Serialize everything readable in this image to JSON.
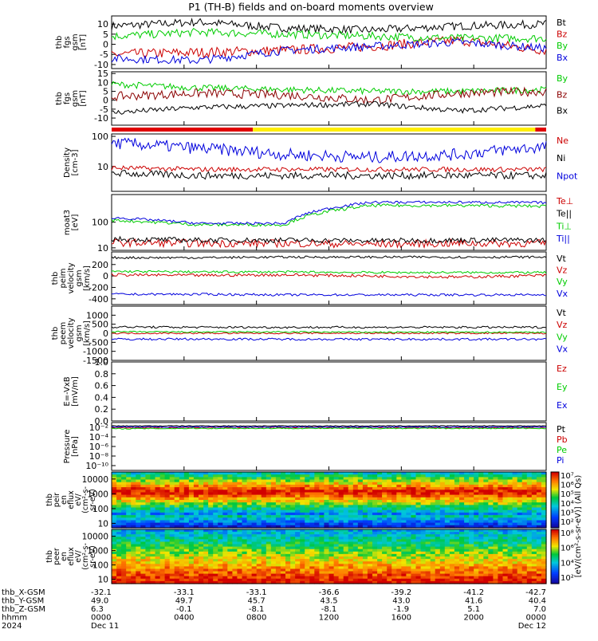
{
  "title": "P1 (TH-B) fields and on-board moments overview",
  "chart_data": {
    "type": "line",
    "x_ticks_hhmm": [
      "0000",
      "0400",
      "0800",
      "1200",
      "1600",
      "2000",
      "0000"
    ],
    "x_ticks_date": [
      "Dec 11",
      "",
      "",
      "",
      "",
      "",
      "Dec 12"
    ],
    "year": "2024",
    "ephemeris": {
      "rows": [
        {
          "label": "thb_X-GSM",
          "values": [
            "-32.1",
            "-33.1",
            "-33.1",
            "-36.6",
            "-39.2",
            "-41.2",
            "-42.7"
          ]
        },
        {
          "label": "thb_Y-GSM",
          "values": [
            "49.0",
            "49.7",
            "45.7",
            "43.5",
            "43.0",
            "41.6",
            "40.4"
          ]
        },
        {
          "label": "thb_Z-GSM",
          "values": [
            "6.3",
            "-0.1",
            "-8.1",
            "-8.1",
            "-1.9",
            "5.1",
            "7.0"
          ]
        },
        {
          "label": "hhmm",
          "values": [
            "0000",
            "0400",
            "0800",
            "1200",
            "1600",
            "2000",
            "0000"
          ]
        },
        {
          "label": "2024",
          "values": [
            "Dec 11",
            "",
            "",
            "",
            "",
            "",
            "Dec 12"
          ]
        }
      ]
    },
    "panels": [
      {
        "ylabel": [
          "thb",
          "fgs",
          "gsm",
          "[nT]"
        ],
        "ylim": [
          -12,
          14
        ],
        "yticks": [
          "-10",
          "-5",
          "0",
          "5",
          "10"
        ],
        "ytick_values": [
          -10,
          -5,
          0,
          5,
          10
        ],
        "log": false,
        "series": [
          {
            "name": "Bt",
            "color": "#000000",
            "level": [
              9,
              11,
              8,
              7,
              9,
              10
            ],
            "noise": 2.0
          },
          {
            "name": "Bz",
            "color": "#cc0000",
            "level": [
              -5,
              -4,
              -3,
              -1,
              2,
              -3
            ],
            "noise": 2.5
          },
          {
            "name": "By",
            "color": "#00cc00",
            "level": [
              4,
              6,
              5,
              4,
              3,
              3
            ],
            "noise": 2.0
          },
          {
            "name": "Bx",
            "color": "#0000dd",
            "level": [
              -7,
              -8,
              -3,
              -1,
              1,
              -2
            ],
            "noise": 2.0
          }
        ]
      },
      {
        "ylabel": [
          "thb",
          "fgs",
          "gsm",
          "[nT]"
        ],
        "ylim": [
          -14,
          16
        ],
        "yticks": [
          "-10",
          "-5",
          "0",
          "5",
          "10",
          "15"
        ],
        "ytick_values": [
          -10,
          -5,
          0,
          5,
          10,
          15
        ],
        "log": false,
        "series": [
          {
            "name": "By",
            "color": "#00cc00",
            "level": [
              9,
              7,
              6,
              5,
              5,
              6
            ],
            "noise": 1.8
          },
          {
            "name": "Bz",
            "color": "#8b0000",
            "level": [
              2,
              4,
              3,
              0,
              4,
              5
            ],
            "noise": 2.5
          },
          {
            "name": "Bx",
            "color": "#000000",
            "level": [
              -7,
              -4,
              -3,
              -2,
              -6,
              -3
            ],
            "noise": 1.5
          }
        ]
      },
      {
        "ylabel": [
          "Density",
          "[cm-3]"
        ],
        "ylim": [
          1.5,
          120
        ],
        "yticks": [
          "10",
          "100"
        ],
        "ytick_values": [
          10,
          100
        ],
        "log": true,
        "series": [
          {
            "name": "Ne",
            "color": "#cc0000",
            "level": [
              9,
              8,
              8,
              8,
              8,
              8
            ],
            "noise": 0.08
          },
          {
            "name": "Ni",
            "color": "#000000",
            "level": [
              6,
              5,
              5,
              5,
              5,
              5
            ],
            "noise": 0.12
          },
          {
            "name": "Npot",
            "color": "#0000dd",
            "level": [
              60,
              40,
              25,
              20,
              25,
              45
            ],
            "noise": 0.2
          }
        ]
      },
      {
        "ylabel": [
          "moat3",
          "[eV]"
        ],
        "ylim": [
          8,
          1200
        ],
        "yticks": [
          "10",
          "100"
        ],
        "ytick_values": [
          10,
          100
        ],
        "log": true,
        "series": [
          {
            "name": "Te⊥",
            "color": "#cc0000",
            "level": [
              16,
              15,
              15,
              14,
              15,
              15
            ],
            "noise": 0.15
          },
          {
            "name": "Te||",
            "color": "#000000",
            "level": [
              22,
              20,
              20,
              19,
              20,
              20
            ],
            "noise": 0.1
          },
          {
            "name": "Ti⊥",
            "color": "#00cc00",
            "level": [
              120,
              80,
              80,
              450,
              450,
              420
            ],
            "noise": 0.06
          },
          {
            "name": "Ti||",
            "color": "#0000dd",
            "level": [
              150,
              90,
              90,
              600,
              600,
              580
            ],
            "noise": 0.05
          }
        ]
      },
      {
        "ylabel": [
          "thb",
          "peim",
          "velocity",
          "gsm",
          "[km/s]"
        ],
        "ylim": [
          -500,
          420
        ],
        "yticks": [
          "-400",
          "-200",
          "0",
          "200"
        ],
        "ytick_values": [
          -400,
          -200,
          0,
          200
        ],
        "log": false,
        "series": [
          {
            "name": "Vt",
            "color": "#000000",
            "level": [
              320,
              320,
              330,
              330,
              330,
              330
            ],
            "noise": 20
          },
          {
            "name": "Vz",
            "color": "#cc0000",
            "level": [
              20,
              10,
              20,
              0,
              -20,
              10
            ],
            "noise": 25
          },
          {
            "name": "Vy",
            "color": "#00cc00",
            "level": [
              80,
              70,
              70,
              60,
              60,
              60
            ],
            "noise": 20
          },
          {
            "name": "Vx",
            "color": "#0000dd",
            "level": [
              -320,
              -320,
              -330,
              -330,
              -330,
              -330
            ],
            "noise": 20
          }
        ]
      },
      {
        "ylabel": [
          "thb",
          "peem",
          "velocity",
          "gsm",
          "[km/s]"
        ],
        "ylim": [
          -1500,
          1500
        ],
        "yticks": [
          "-1500",
          "-1000",
          "-500",
          "0",
          "500",
          "1000"
        ],
        "ytick_values": [
          -1500,
          -1000,
          -500,
          0,
          500,
          1000
        ],
        "log": false,
        "series": [
          {
            "name": "Vt",
            "color": "#000000",
            "level": [
              350,
              330,
              330,
              330,
              330,
              330
            ],
            "noise": 60
          },
          {
            "name": "Vz",
            "color": "#cc0000",
            "level": [
              0,
              0,
              0,
              0,
              0,
              0
            ],
            "noise": 40
          },
          {
            "name": "Vy",
            "color": "#00cc00",
            "level": [
              80,
              70,
              70,
              60,
              60,
              60
            ],
            "noise": 40
          },
          {
            "name": "Vx",
            "color": "#0000dd",
            "level": [
              -330,
              -320,
              -330,
              -330,
              -330,
              -330
            ],
            "noise": 60
          }
        ]
      },
      {
        "ylabel": [
          "E=-VxB",
          "[mV/m]"
        ],
        "ylim": [
          0,
          1.0
        ],
        "yticks": [
          "0.0",
          "0.2",
          "0.4",
          "0.6",
          "0.8",
          "1.0"
        ],
        "ytick_values": [
          0,
          0.2,
          0.4,
          0.6,
          0.8,
          1.0
        ],
        "log": false,
        "series": [
          {
            "name": "Ez",
            "color": "#cc0000",
            "level": null,
            "noise": 0
          },
          {
            "name": "Ey",
            "color": "#00cc00",
            "level": null,
            "noise": 0
          },
          {
            "name": "Ex",
            "color": "#0000dd",
            "level": null,
            "noise": 0
          }
        ]
      },
      {
        "ylabel": [
          "Pressure",
          "[nPa]"
        ],
        "ylim": [
          1e-11,
          0.1
        ],
        "yticks": [
          "10⁻²",
          "10⁻⁴",
          "10⁻⁶",
          "10⁻⁸",
          "10⁻¹⁰"
        ],
        "ytick_values": [
          0.01,
          0.0001,
          1e-06,
          1e-08,
          1e-10
        ],
        "log": true,
        "series": [
          {
            "name": "Pt",
            "color": "#000000",
            "level": [
              0.02,
              0.02,
              0.02,
              0.02,
              0.02,
              0.02
            ],
            "noise": 0.08
          },
          {
            "name": "Pb",
            "color": "#cc0000",
            "level": [
              0.008,
              0.01,
              0.01,
              0.01,
              0.009,
              0.01
            ],
            "noise": 0.12
          },
          {
            "name": "Pe",
            "color": "#00cc00",
            "level": [
              0.005,
              0.006,
              0.006,
              0.006,
              0.006,
              0.006
            ],
            "noise": 0.1
          },
          {
            "name": "Pi",
            "color": "#0000dd",
            "level": [
              0.012,
              0.012,
              0.012,
              0.012,
              0.012,
              0.012
            ],
            "noise": 0.08
          }
        ]
      }
    ],
    "spectrograms": [
      {
        "ylabel": [
          "thb",
          "peir",
          "en",
          "eflux",
          "eV/",
          "(cm²-s-",
          "sr-eV)"
        ],
        "yticks": [
          "10",
          "100",
          "1000",
          "10000"
        ],
        "colorbar_label": "[eV/(cm²-s-sr-eV)] (All Qs)",
        "colorbar_ticks": [
          "10⁷",
          "10⁶",
          "10⁵",
          "10⁴",
          "10³",
          "10²"
        ]
      },
      {
        "ylabel": [
          "thb",
          "peer",
          "en",
          "eflux",
          "eV/",
          "(cm²-s-",
          "sr-eV)"
        ],
        "yticks": [
          "10",
          "100",
          "1000",
          "10000"
        ],
        "colorbar_label": "",
        "colorbar_ticks": [
          "10⁸",
          "10⁶",
          "10⁴",
          "10²"
        ]
      }
    ],
    "mode_bar": {
      "colors": {
        "red": "#e00000",
        "yellow": "#ffee00"
      },
      "segments": [
        {
          "color": "red",
          "from": 0,
          "to": 0.325
        },
        {
          "color": "yellow",
          "from": 0.325,
          "to": 0.975
        },
        {
          "color": "red",
          "from": 0.975,
          "to": 1
        }
      ]
    }
  }
}
